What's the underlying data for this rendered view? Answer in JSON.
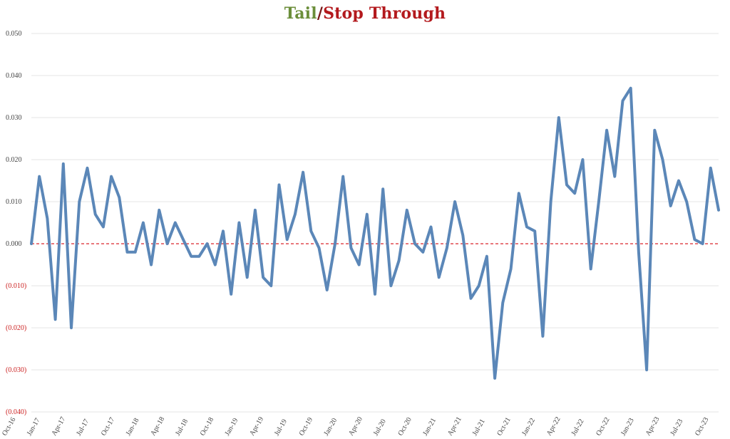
{
  "chart_data": {
    "type": "line",
    "title_parts": {
      "tail": "Tail",
      "separator": "/",
      "stop": "Stop Through"
    },
    "xlabel": "",
    "ylabel": "",
    "ylim": [
      -0.04,
      0.05
    ],
    "y_ticks": [
      0.05,
      0.04,
      0.03,
      0.02,
      0.01,
      0.0,
      -0.01,
      -0.02,
      -0.03,
      -0.04
    ],
    "y_tick_labels": [
      "0.050",
      "0.040",
      "0.030",
      "0.020",
      "0.010",
      "0.000",
      "(0.010)",
      "(0.020)",
      "(0.030)",
      "(0.040)"
    ],
    "x_tick_labels": [
      "Oct-16",
      "Jan-17",
      "Apr-17",
      "Jul-17",
      "Oct-17",
      "Jan-18",
      "Apr-18",
      "Jul-18",
      "Oct-18",
      "Jan-19",
      "Apr-19",
      "Jul-19",
      "Oct-19",
      "Jan-20",
      "Apr-20",
      "Jul-20",
      "Oct-20",
      "Jan-21",
      "Apr-21",
      "Jul-21",
      "Oct-21",
      "Jan-22",
      "Apr-22",
      "Jul-22",
      "Oct-22",
      "Jan-23",
      "Apr-23",
      "Jul-23",
      "Oct-23"
    ],
    "grid": true,
    "reference_line": 0.0,
    "colors": {
      "line": "#5b87b8",
      "zero_line": "#d9262c",
      "negative_tick": "#cc2222",
      "positive_tick": "#444444",
      "grid": "#e4e4e4"
    },
    "series": [
      {
        "values": [
          0.0,
          0.016,
          0.006,
          -0.018,
          0.019,
          -0.02,
          0.01,
          0.018,
          0.007,
          0.004,
          0.016,
          0.011,
          -0.002,
          -0.002,
          0.005,
          -0.005,
          0.008,
          0.0,
          0.005,
          0.001,
          -0.003,
          -0.003,
          0.0,
          -0.005,
          0.003,
          -0.012,
          0.005,
          -0.008,
          0.008,
          -0.008,
          -0.01,
          0.014,
          0.001,
          0.007,
          0.017,
          0.003,
          -0.001,
          -0.011,
          0.0,
          0.016,
          -0.001,
          -0.005,
          0.007,
          -0.012,
          0.013,
          -0.01,
          -0.004,
          0.008,
          0.0,
          -0.002,
          0.004,
          -0.008,
          -0.001,
          0.01,
          0.002,
          -0.013,
          -0.01,
          -0.003,
          -0.032,
          -0.014,
          -0.006,
          0.012,
          0.004,
          0.003,
          -0.022,
          0.01,
          0.03,
          0.014,
          0.012,
          0.02,
          -0.006,
          0.01,
          0.027,
          0.016,
          0.034,
          0.037,
          -0.002,
          -0.03,
          0.027,
          0.02,
          0.009,
          0.015,
          0.01,
          0.001,
          0.0,
          0.018,
          0.008
        ]
      }
    ]
  }
}
